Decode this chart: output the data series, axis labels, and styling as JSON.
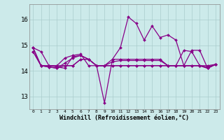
{
  "background_color": "#cceaea",
  "grid_color": "#aacccc",
  "line_color": "#880088",
  "xlim": [
    -0.5,
    23.5
  ],
  "ylim": [
    12.5,
    16.6
  ],
  "yticks": [
    13,
    14,
    15,
    16
  ],
  "xtick_labels": [
    "0",
    "1",
    "2",
    "3",
    "4",
    "5",
    "6",
    "7",
    "8",
    "9",
    "10",
    "11",
    "12",
    "13",
    "14",
    "15",
    "16",
    "17",
    "18",
    "19",
    "20",
    "21",
    "22",
    "23"
  ],
  "xlabel": "Windchill (Refroidissement éolien,°C)",
  "series": [
    [
      14.9,
      14.75,
      14.2,
      14.15,
      14.1,
      14.55,
      14.6,
      14.45,
      14.2,
      12.75,
      14.45,
      14.9,
      16.1,
      15.85,
      15.2,
      15.75,
      15.3,
      15.4,
      15.2,
      14.2,
      14.8,
      14.8,
      14.1,
      14.25
    ],
    [
      14.75,
      14.2,
      14.2,
      14.2,
      14.5,
      14.6,
      14.65,
      14.2,
      14.2,
      14.2,
      14.45,
      14.45,
      14.45,
      14.45,
      14.45,
      14.45,
      14.45,
      14.2,
      14.2,
      14.8,
      14.75,
      14.2,
      14.2,
      14.25
    ],
    [
      14.75,
      14.2,
      14.15,
      14.1,
      14.2,
      14.2,
      14.45,
      14.45,
      14.2,
      14.2,
      14.2,
      14.2,
      14.2,
      14.2,
      14.2,
      14.2,
      14.2,
      14.2,
      14.2,
      14.2,
      14.2,
      14.2,
      14.15,
      14.25
    ],
    [
      14.9,
      14.2,
      14.2,
      14.2,
      14.2,
      14.2,
      14.45,
      14.45,
      14.2,
      14.2,
      14.2,
      14.2,
      14.2,
      14.2,
      14.2,
      14.2,
      14.2,
      14.2,
      14.2,
      14.2,
      14.2,
      14.2,
      14.1,
      14.25
    ],
    [
      14.9,
      14.2,
      14.15,
      14.1,
      14.3,
      14.5,
      14.6,
      14.45,
      14.2,
      14.2,
      14.35,
      14.4,
      14.4,
      14.4,
      14.4,
      14.4,
      14.4,
      14.2,
      14.2,
      14.2,
      14.2,
      14.2,
      14.1,
      14.25
    ]
  ],
  "title_color": "#440044",
  "spine_color": "#888888"
}
